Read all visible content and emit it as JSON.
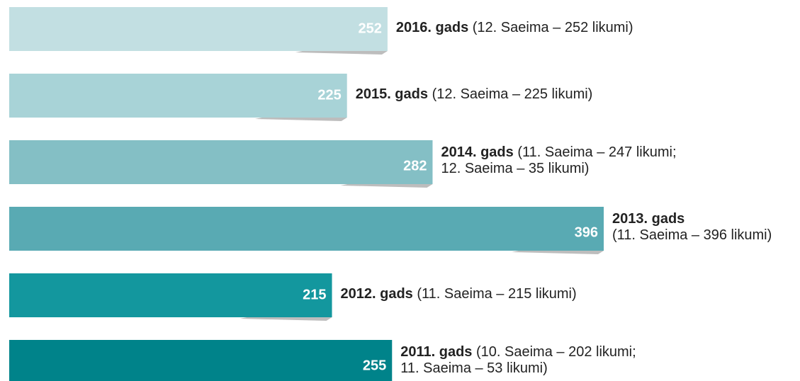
{
  "chart_data": {
    "type": "bar",
    "orientation": "horizontal",
    "categories": [
      "2016. gads",
      "2015. gads",
      "2014. gads",
      "2013. gads",
      "2012. gads",
      "2011. gads"
    ],
    "details": [
      [
        "(12. Saeima – 252 likumi)"
      ],
      [
        "(12. Saeima – 225 likumi)"
      ],
      [
        "(11. Saeima – 247 likumi;",
        "12. Saeima – 35 likumi)"
      ],
      [
        "(11. Saeima – 396 likumi)"
      ],
      [
        "(11. Saeima – 215 likumi)"
      ],
      [
        "(10. Saeima – 202 likumi;",
        "11. Saeima – 53 likumi)"
      ]
    ],
    "values": [
      252,
      225,
      282,
      396,
      215,
      255
    ],
    "colors": [
      "#c2dfe2",
      "#a8d3d7",
      "#84bfc5",
      "#59aab3",
      "#13979e",
      "#00838a"
    ]
  }
}
